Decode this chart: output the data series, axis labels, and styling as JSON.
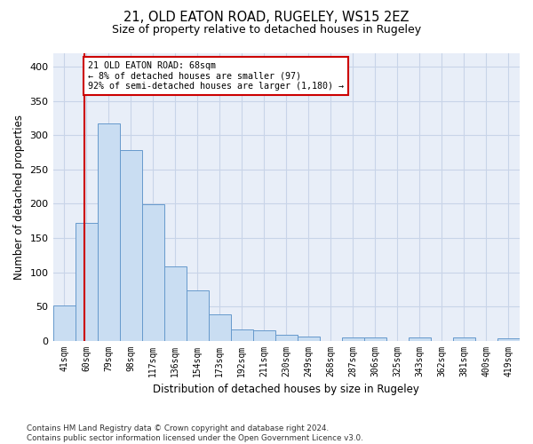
{
  "title_line1": "21, OLD EATON ROAD, RUGELEY, WS15 2EZ",
  "title_line2": "Size of property relative to detached houses in Rugeley",
  "xlabel": "Distribution of detached houses by size in Rugeley",
  "ylabel": "Number of detached properties",
  "bar_labels": [
    "41sqm",
    "60sqm",
    "79sqm",
    "98sqm",
    "117sqm",
    "136sqm",
    "154sqm",
    "173sqm",
    "192sqm",
    "211sqm",
    "230sqm",
    "249sqm",
    "268sqm",
    "287sqm",
    "306sqm",
    "325sqm",
    "343sqm",
    "362sqm",
    "381sqm",
    "400sqm",
    "419sqm"
  ],
  "bar_values": [
    51,
    172,
    318,
    279,
    199,
    108,
    73,
    39,
    16,
    15,
    9,
    6,
    0,
    5,
    5,
    0,
    5,
    0,
    5,
    0,
    3
  ],
  "bar_color": "#c9ddf2",
  "bar_edge_color": "#6699cc",
  "grid_color": "#c8d4e8",
  "background_color": "#e8eef8",
  "vline_x": 68,
  "vline_color": "#cc0000",
  "annotation_text": "21 OLD EATON ROAD: 68sqm\n← 8% of detached houses are smaller (97)\n92% of semi-detached houses are larger (1,180) →",
  "annotation_box_facecolor": "#ffffff",
  "annotation_box_edgecolor": "#cc0000",
  "ylim": [
    0,
    420
  ],
  "yticks": [
    0,
    50,
    100,
    150,
    200,
    250,
    300,
    350,
    400
  ],
  "footnote": "Contains HM Land Registry data © Crown copyright and database right 2024.\nContains public sector information licensed under the Open Government Licence v3.0."
}
